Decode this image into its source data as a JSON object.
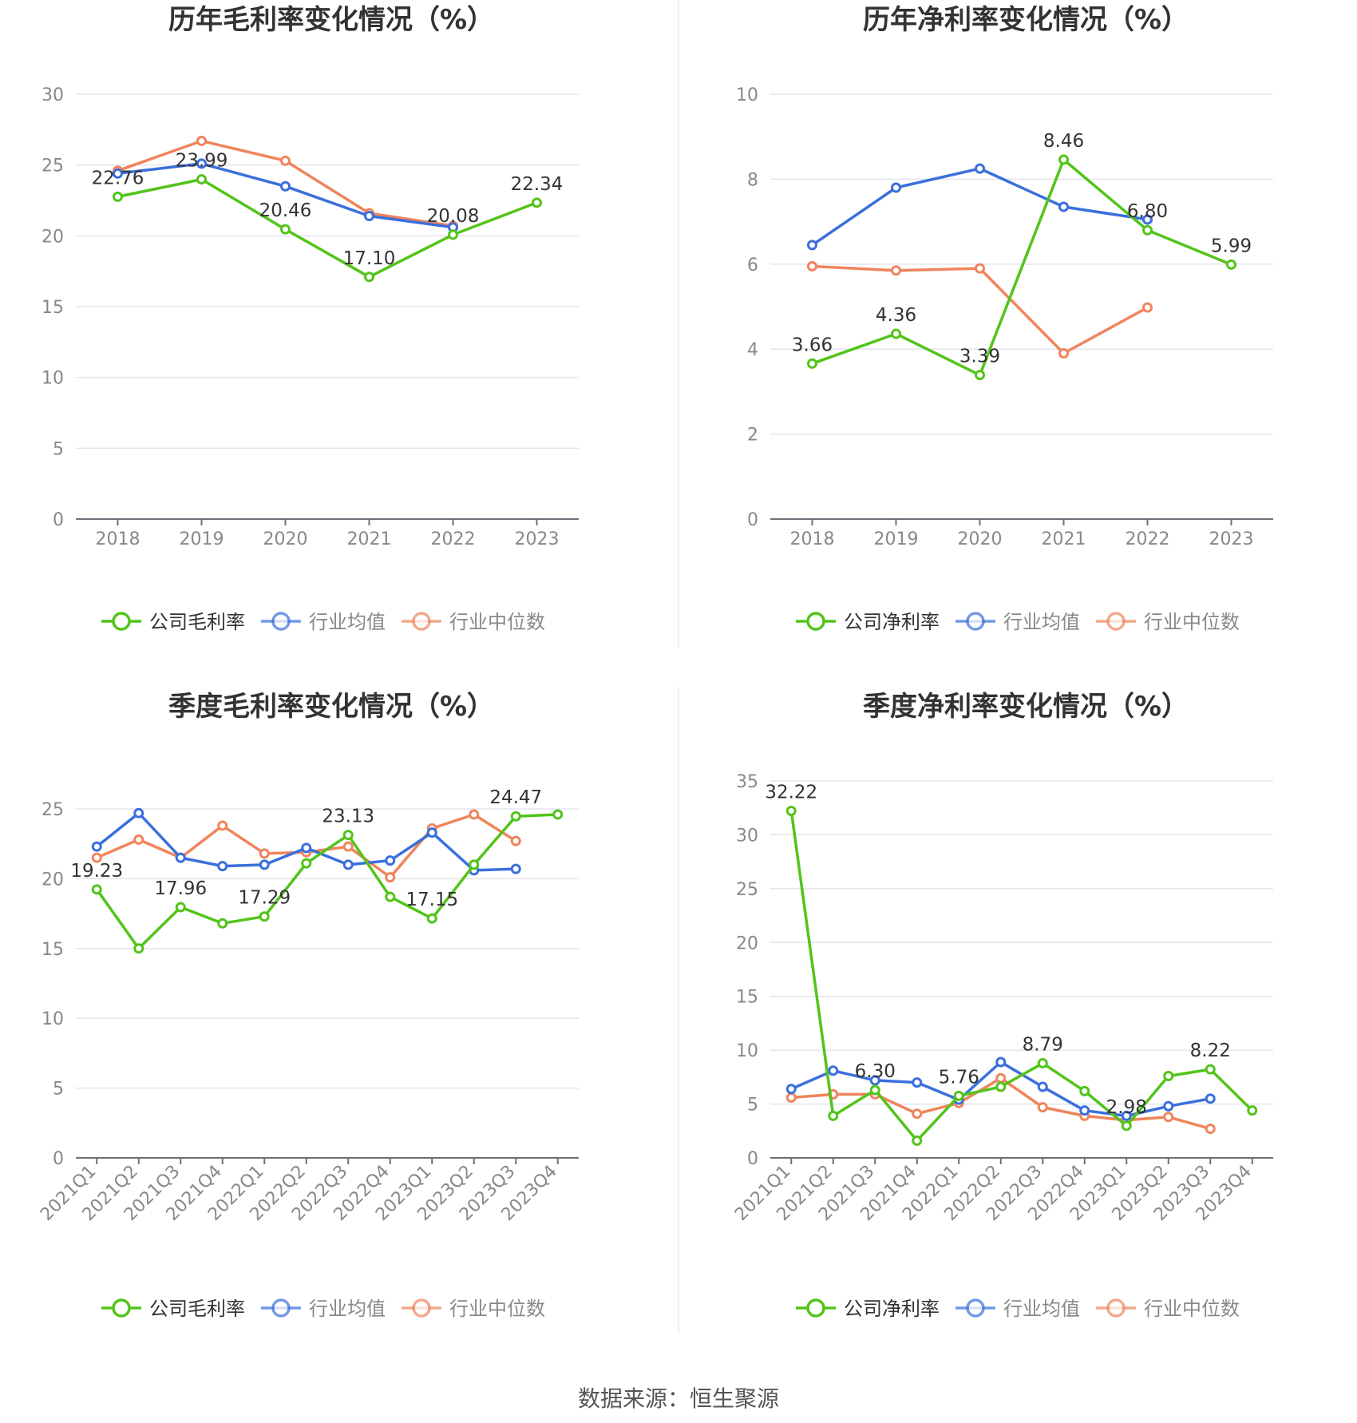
{
  "colors": {
    "company": "#52c41a",
    "avg": "#3a6fdc",
    "median": "#f0845c"
  },
  "source_text": "数据来源：恒生聚源",
  "chart_data": [
    {
      "type": "line",
      "title": "历年毛利率变化情况（%）",
      "categories": [
        "2018",
        "2019",
        "2020",
        "2021",
        "2022",
        "2023"
      ],
      "ylim": [
        0,
        30
      ],
      "yticks": [
        0,
        5,
        10,
        15,
        20,
        25,
        30
      ],
      "rotate_x": false,
      "series": [
        {
          "name": "公司毛利率",
          "key": "company",
          "values": [
            22.76,
            23.99,
            20.46,
            17.1,
            20.08,
            22.34
          ],
          "labels": [
            "22.76",
            "23.99",
            "20.46",
            "17.10",
            "20.08",
            "22.34"
          ]
        },
        {
          "name": "行业均值",
          "key": "avg",
          "values": [
            24.4,
            25.1,
            23.5,
            21.4,
            20.6,
            null
          ]
        },
        {
          "name": "行业中位数",
          "key": "median",
          "values": [
            24.6,
            26.7,
            25.3,
            21.6,
            20.7,
            null
          ]
        }
      ]
    },
    {
      "type": "line",
      "title": "历年净利率变化情况（%）",
      "categories": [
        "2018",
        "2019",
        "2020",
        "2021",
        "2022",
        "2023"
      ],
      "ylim": [
        0,
        10
      ],
      "yticks": [
        0,
        2,
        4,
        6,
        8,
        10
      ],
      "rotate_x": false,
      "series": [
        {
          "name": "公司净利率",
          "key": "company",
          "values": [
            3.66,
            4.36,
            3.39,
            8.46,
            6.8,
            5.99
          ],
          "labels": [
            "3.66",
            "4.36",
            "3.39",
            "8.46",
            "6.80",
            "5.99"
          ]
        },
        {
          "name": "行业均值",
          "key": "avg",
          "values": [
            6.45,
            7.8,
            8.25,
            7.35,
            7.05,
            null
          ]
        },
        {
          "name": "行业中位数",
          "key": "median",
          "values": [
            5.95,
            5.85,
            5.9,
            3.9,
            4.98,
            null
          ]
        }
      ]
    },
    {
      "type": "line",
      "title": "季度毛利率变化情况（%）",
      "categories": [
        "2021Q1",
        "2021Q2",
        "2021Q3",
        "2021Q4",
        "2022Q1",
        "2022Q2",
        "2022Q3",
        "2022Q4",
        "2023Q1",
        "2023Q2",
        "2023Q3",
        "2023Q4"
      ],
      "ylim": [
        0,
        27
      ],
      "yticks": [
        0,
        5,
        10,
        15,
        20,
        25
      ],
      "rotate_x": true,
      "series": [
        {
          "name": "公司毛利率",
          "key": "company",
          "values": [
            19.23,
            15.0,
            17.96,
            16.8,
            17.29,
            21.1,
            23.13,
            18.7,
            17.15,
            21.0,
            24.47,
            24.6
          ],
          "labels": [
            "19.23",
            "",
            "17.96",
            "",
            "17.29",
            "",
            "23.13",
            "",
            "17.15",
            "",
            "24.47",
            ""
          ]
        },
        {
          "name": "行业均值",
          "key": "avg",
          "values": [
            22.3,
            24.7,
            21.5,
            20.9,
            21.0,
            22.2,
            21.0,
            21.3,
            23.3,
            20.6,
            20.7,
            null
          ]
        },
        {
          "name": "行业中位数",
          "key": "median",
          "values": [
            21.5,
            22.8,
            21.5,
            23.8,
            21.8,
            21.9,
            22.3,
            20.1,
            23.6,
            24.6,
            22.7,
            null
          ]
        }
      ]
    },
    {
      "type": "line",
      "title": "季度净利率变化情况（%）",
      "categories": [
        "2021Q1",
        "2021Q2",
        "2021Q3",
        "2021Q4",
        "2022Q1",
        "2022Q2",
        "2022Q3",
        "2022Q4",
        "2023Q1",
        "2023Q2",
        "2023Q3",
        "2023Q4"
      ],
      "ylim": [
        0,
        35
      ],
      "yticks": [
        0,
        5,
        10,
        15,
        20,
        25,
        30,
        35
      ],
      "rotate_x": true,
      "series": [
        {
          "name": "公司净利率",
          "key": "company",
          "values": [
            32.22,
            3.9,
            6.3,
            1.6,
            5.76,
            6.6,
            8.79,
            6.2,
            2.98,
            7.6,
            8.22,
            4.4
          ],
          "labels": [
            "32.22",
            "",
            "6.30",
            "",
            "5.76",
            "",
            "8.79",
            "",
            "2.98",
            "",
            "8.22",
            ""
          ]
        },
        {
          "name": "行业均值",
          "key": "avg",
          "values": [
            6.4,
            8.1,
            7.2,
            7.0,
            5.4,
            8.9,
            6.6,
            4.4,
            3.9,
            4.8,
            5.5,
            null
          ]
        },
        {
          "name": "行业中位数",
          "key": "median",
          "values": [
            5.6,
            5.9,
            5.9,
            4.1,
            5.1,
            7.4,
            4.7,
            3.9,
            3.5,
            3.8,
            2.7,
            null
          ]
        }
      ]
    }
  ]
}
